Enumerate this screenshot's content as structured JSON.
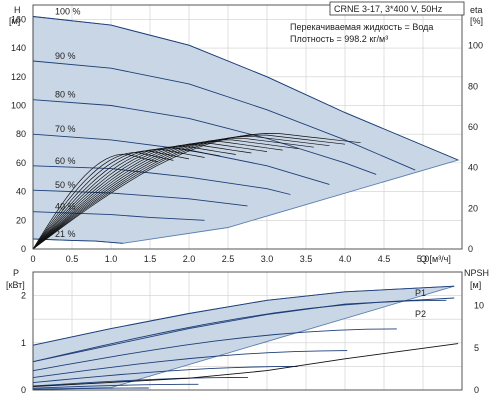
{
  "chart_data": [
    {
      "type": "line",
      "title": "CRNE 3-17, 3*400 V, 50Hz",
      "info_lines": [
        "Перекачиваемая жидкость = Вода",
        "Плотность = 998.2 кг/м³"
      ],
      "ylabel_left": "H",
      "ylabel_left_unit": "[м]",
      "ylabel_right": "eta",
      "ylabel_right_unit": "[%]",
      "xlabel": "Q [м³/ч]",
      "xlim": [
        0,
        5.5
      ],
      "ylim": [
        0,
        170
      ],
      "x_ticks": [
        "0",
        "0.5",
        "1.0",
        "1.5",
        "2.0",
        "2.5",
        "3.0",
        "3.5",
        "4.0",
        "4.5",
        "5.0"
      ],
      "y_ticks_left": [
        "0",
        "20",
        "40",
        "60",
        "80",
        "100",
        "120",
        "140",
        "160"
      ],
      "y_ticks_right": [
        "0",
        "20",
        "40",
        "60",
        "80",
        "100"
      ],
      "grid": true,
      "speed_curves": [
        {
          "name": "100 %",
          "x": [
            0,
            1,
            2,
            3,
            4,
            5.45
          ],
          "y": [
            162,
            156,
            142,
            120,
            95,
            62
          ]
        },
        {
          "name": "90 %",
          "x": [
            0,
            1,
            2,
            3,
            4,
            4.9
          ],
          "y": [
            131,
            126,
            115,
            97,
            76,
            55
          ]
        },
        {
          "name": "80 %",
          "x": [
            0,
            1,
            2,
            3,
            4,
            4.4
          ],
          "y": [
            104,
            100,
            91,
            77,
            60,
            52
          ]
        },
        {
          "name": "70 %",
          "x": [
            0,
            1,
            2,
            3,
            3.8
          ],
          "y": [
            80,
            76,
            69,
            58,
            45
          ]
        },
        {
          "name": "60 %",
          "x": [
            0,
            1,
            2,
            3,
            3.3
          ],
          "y": [
            58,
            56,
            50,
            42,
            38
          ]
        },
        {
          "name": "50 %",
          "x": [
            0,
            1,
            2,
            2.75
          ],
          "y": [
            41,
            39,
            35,
            30
          ]
        },
        {
          "name": "40 %",
          "x": [
            0,
            1,
            1.5,
            2.2
          ],
          "y": [
            26,
            24,
            22,
            20
          ]
        },
        {
          "name": "21 %",
          "x": [
            0,
            0.5,
            0.8,
            1.15
          ],
          "y": [
            7,
            6,
            5.5,
            4
          ]
        }
      ],
      "eta_max": 57,
      "eta_curve_count": 14
    },
    {
      "type": "line",
      "ylabel_left": "P",
      "ylabel_left_unit": "[кВт]",
      "ylabel_right": "NPSH",
      "ylabel_right_unit": "[м]",
      "xlim": [
        0,
        5.5
      ],
      "ylim_left": [
        0,
        2.5
      ],
      "ylim_right": [
        0,
        14
      ],
      "y_ticks_left": [
        "0",
        "1",
        "2"
      ],
      "y_ticks_right": [
        "0",
        "5",
        "10"
      ],
      "grid": true,
      "series": [
        {
          "name": "P1",
          "x": [
            0,
            1,
            2,
            3,
            4,
            5.4
          ],
          "values": [
            0.95,
            1.3,
            1.62,
            1.9,
            2.08,
            2.2
          ]
        },
        {
          "name": "P2",
          "x": [
            0,
            1,
            2,
            3,
            4,
            5.4
          ],
          "values": [
            0.6,
            0.95,
            1.3,
            1.6,
            1.82,
            1.95
          ]
        }
      ],
      "npsh": {
        "x": [
          0,
          1,
          2,
          3,
          4,
          5.45
        ],
        "values": [
          0.4,
          0.9,
          1.4,
          2.3,
          3.7,
          5.5
        ]
      }
    }
  ]
}
